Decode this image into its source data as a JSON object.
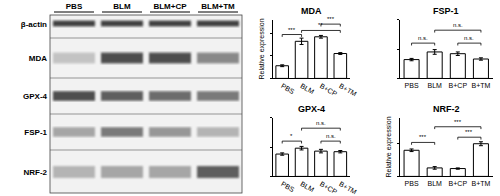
{
  "blot": {
    "columns": [
      "PBS",
      "BLM",
      "BLM+CP",
      "BLM+TM"
    ],
    "rows": [
      "β-actin",
      "MDA",
      "GPX-4",
      "FSP-1",
      "NRF-2"
    ]
  },
  "chart_data": [
    {
      "type": "bar",
      "title": "MDA",
      "ylabel": "Relative expression",
      "categories": [
        "PBS",
        "BLM",
        "B+CP",
        "B+TM"
      ],
      "values": [
        0.28,
        0.82,
        0.92,
        0.55
      ],
      "errors": [
        0.02,
        0.07,
        0.03,
        0.02
      ],
      "color": "#ffffff",
      "ylim": [
        0,
        1.3
      ],
      "yticks": [
        0,
        0.5,
        1.0
      ],
      "tick_labels": "x",
      "brackets": [
        {
          "from": 0,
          "to": 1,
          "y": 0.97,
          "label": "***"
        },
        {
          "from": 1,
          "to": 3,
          "y": 1.06,
          "label": "**"
        },
        {
          "from": 2,
          "to": 3,
          "y": 1.2,
          "label": "***"
        }
      ]
    },
    {
      "type": "bar",
      "title": "FSP-1",
      "categories": [
        "PBS",
        "BLM",
        "B+CP",
        "B+TM"
      ],
      "values": [
        0.32,
        0.45,
        0.42,
        0.33
      ],
      "errors": [
        0.02,
        0.04,
        0.03,
        0.02
      ],
      "color": "#ffffff",
      "ylim": [
        0,
        1.0
      ],
      "yticks": [
        0,
        0.5,
        1.0
      ],
      "tick_labels": "x",
      "brackets": [
        {
          "from": 0,
          "to": 1,
          "y": 0.6,
          "label": "n.s."
        },
        {
          "from": 2,
          "to": 3,
          "y": 0.6,
          "label": "n.s."
        },
        {
          "from": 1,
          "to": 3,
          "y": 0.82,
          "label": "n.s."
        }
      ]
    },
    {
      "type": "bar",
      "title": "GPX-4",
      "categories": [
        "PBS",
        "BLM",
        "B+CP",
        "B+TM"
      ],
      "values": [
        0.38,
        0.48,
        0.43,
        0.42
      ],
      "errors": [
        0.02,
        0.03,
        0.03,
        0.02
      ],
      "color": "#ffffff",
      "ylim": [
        0,
        1.0
      ],
      "yticks": [
        0,
        0.5,
        1.0
      ],
      "tick_labels": "x",
      "brackets": [
        {
          "from": 0,
          "to": 1,
          "y": 0.6,
          "label": "*"
        },
        {
          "from": 2,
          "to": 3,
          "y": 0.6,
          "label": "n.s."
        },
        {
          "from": 1,
          "to": 3,
          "y": 0.82,
          "label": "n.s."
        }
      ]
    },
    {
      "type": "bar",
      "title": "NRF-2",
      "ylabel": "Relative expression",
      "categories": [
        "PBS",
        "BLM",
        "B+CP",
        "B+TM"
      ],
      "values": [
        0.4,
        0.13,
        0.12,
        0.5
      ],
      "errors": [
        0.02,
        0.02,
        0.01,
        0.03
      ],
      "color": "#ffffff",
      "ylim": [
        0,
        0.9
      ],
      "yticks": [
        0,
        0.5
      ],
      "tick_labels": "x",
      "brackets": [
        {
          "from": 0,
          "to": 1,
          "y": 0.52,
          "label": "***"
        },
        {
          "from": 2,
          "to": 3,
          "y": 0.6,
          "label": "***"
        },
        {
          "from": 1,
          "to": 3,
          "y": 0.76,
          "label": "***"
        }
      ]
    }
  ]
}
